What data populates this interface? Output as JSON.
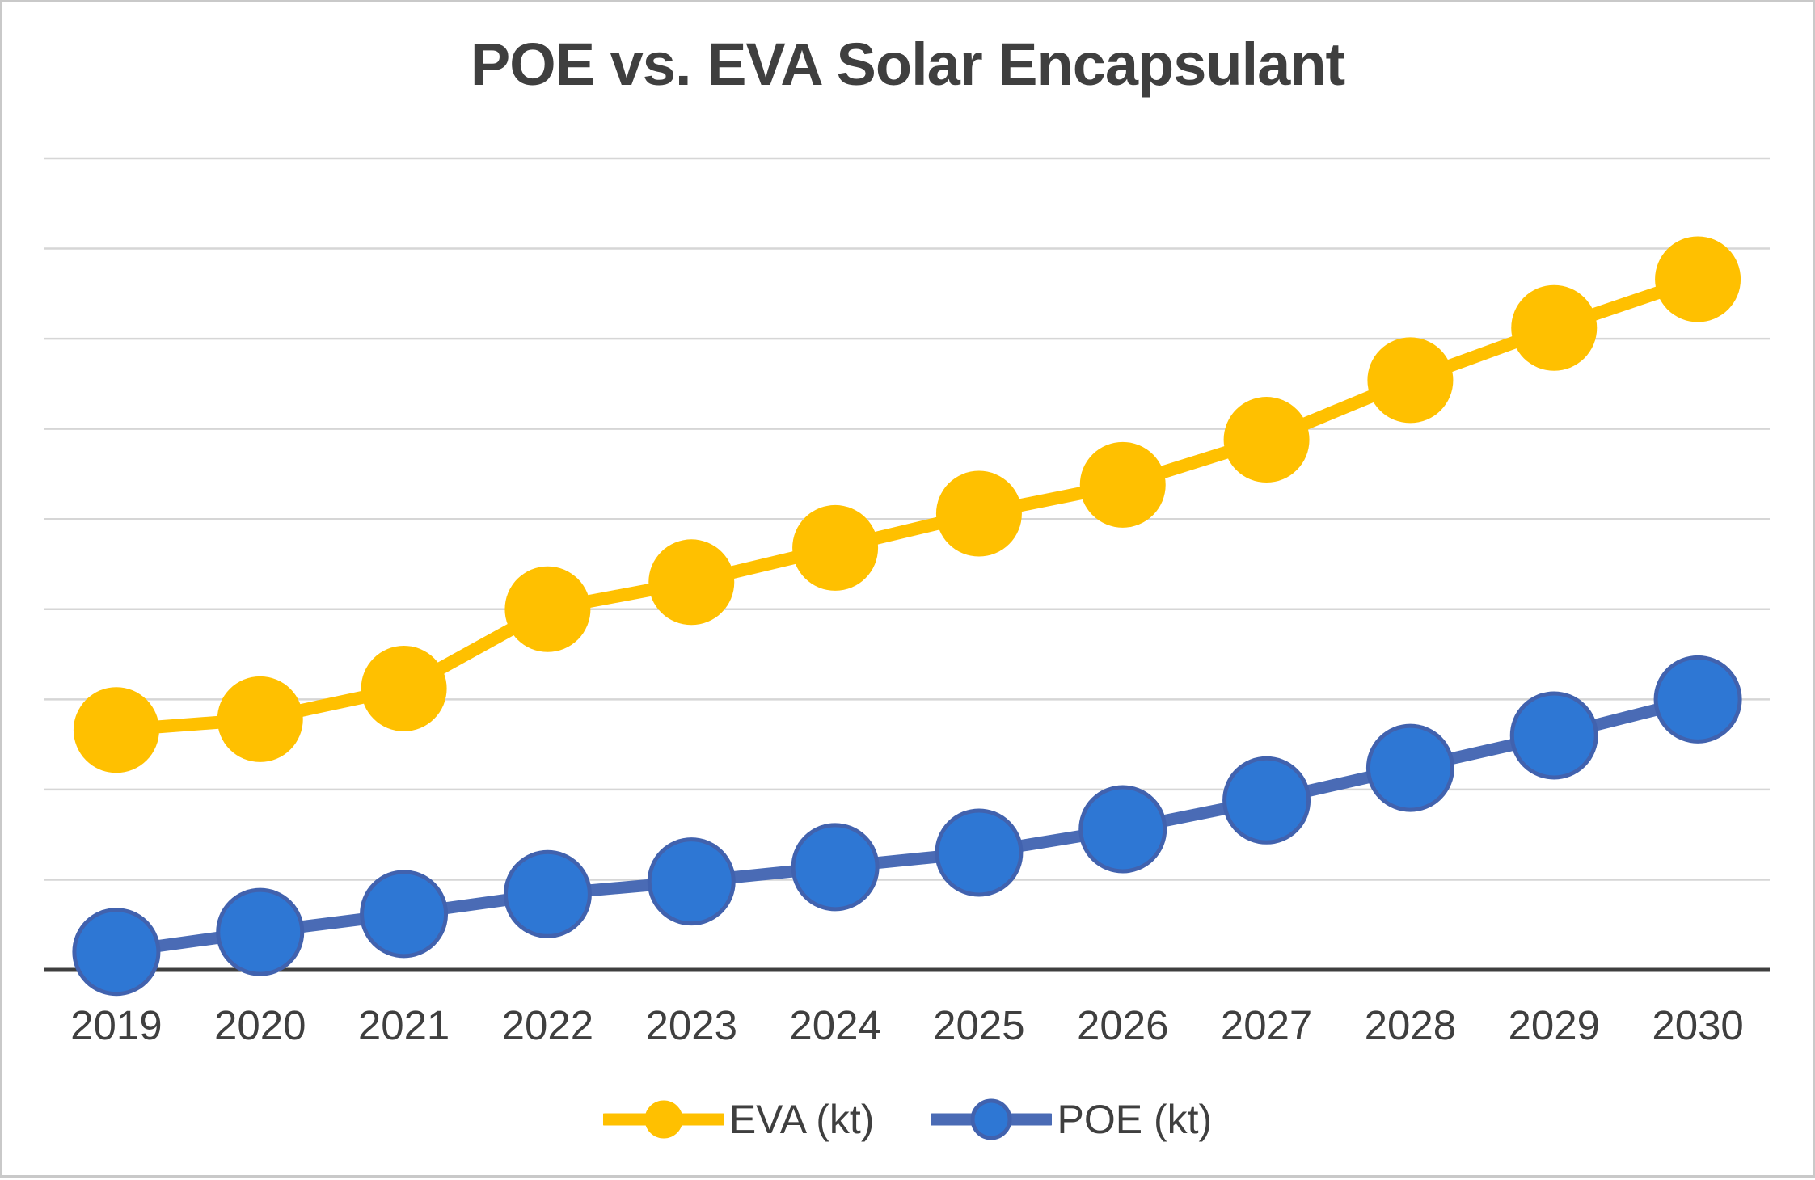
{
  "window": {
    "background_color": "#FFFFFF",
    "border_color": "#C9C9C9"
  },
  "chart_data": {
    "type": "line",
    "title": "POE vs. EVA Solar Encapsulant",
    "title_color": "#3F3F3F",
    "categories": [
      "2019",
      "2020",
      "2021",
      "2022",
      "2023",
      "2024",
      "2025",
      "2026",
      "2027",
      "2028",
      "2029",
      "2030"
    ],
    "series": [
      {
        "name": "EVA (kt)",
        "line_color": "#FFC000",
        "marker_fill": "#FFC000",
        "marker_stroke": "#FFC000",
        "values": [
          133,
          139,
          156,
          200,
          215,
          234,
          253,
          269,
          294,
          327,
          356,
          383
        ]
      },
      {
        "name": "POE (kt)",
        "line_color": "#4A6BB5",
        "marker_fill": "#2E77D4",
        "marker_stroke": "#4162AE",
        "values": [
          10,
          21,
          31,
          42,
          49,
          57,
          65,
          78,
          94,
          112,
          130,
          150
        ]
      }
    ],
    "xlabel": "",
    "ylabel": "",
    "ylim": [
      0,
      450
    ],
    "gridline_step": 50,
    "grid": "horizontal-only",
    "y_axis_labels_visible": false,
    "gridline_color": "#D6D6D6",
    "axis_color": "#3F3F3F",
    "tick_label_color": "#3F3F3F",
    "legend_position": "bottom"
  }
}
